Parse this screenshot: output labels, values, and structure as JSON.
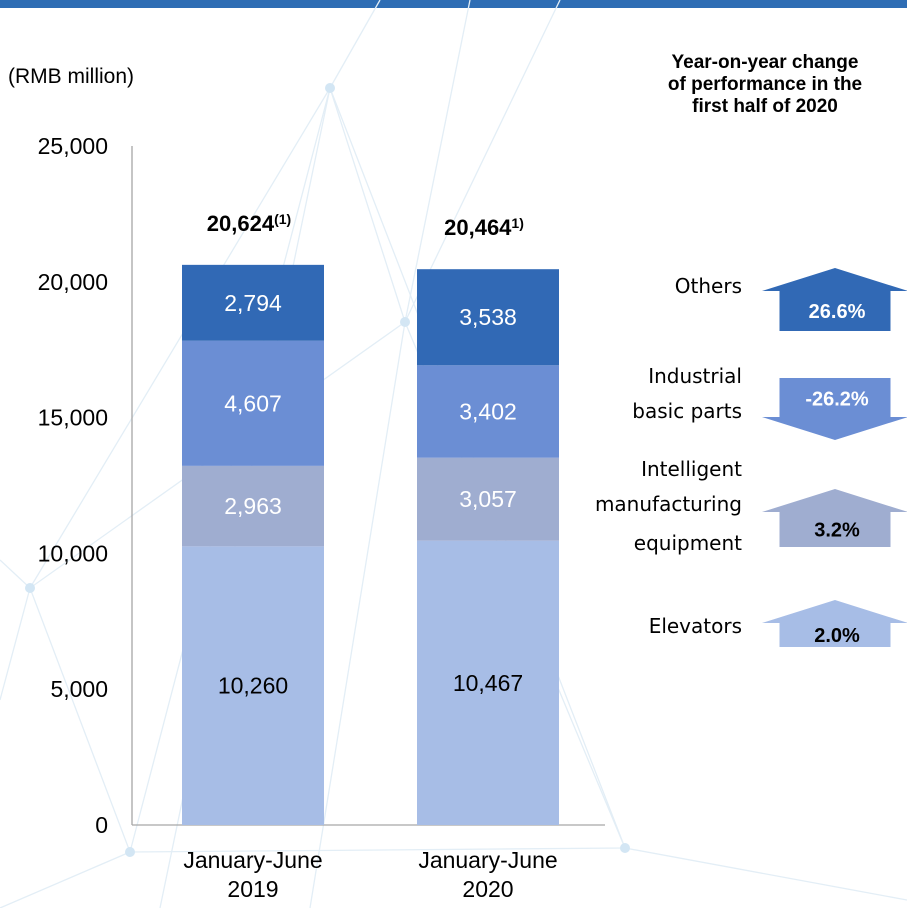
{
  "unit_label": "(RMB million)",
  "yoy_title": "Year-on-year change of performance in the first half of 2020",
  "colors": {
    "elevators": "#a7bde6",
    "intelligent_manufacturing_equipment": "#9fadd0",
    "industrial_basic_parts": "#6b8ed4",
    "others": "#3169b5",
    "axis": "#a6a6a6",
    "top_bar": "#2e6db4"
  },
  "chart_data": {
    "type": "bar",
    "stacked": true,
    "categories": [
      [
        "January-June",
        "2019"
      ],
      [
        "January-June",
        "2020"
      ]
    ],
    "totals": [
      "20,624",
      "20,464"
    ],
    "total_marks": [
      "(1)",
      "1)"
    ],
    "series": [
      {
        "key": "elevators",
        "name": "Elevators",
        "values": [
          10260,
          10467
        ],
        "labels": [
          "10,260",
          "10,467"
        ],
        "label_color": "#000000"
      },
      {
        "key": "intelligent_manufacturing_equipment",
        "name": "Intelligent manufacturing equipment",
        "values": [
          2963,
          3057
        ],
        "labels": [
          "2,963",
          "3,057"
        ],
        "label_color": "#ffffff"
      },
      {
        "key": "industrial_basic_parts",
        "name": "Industrial basic parts",
        "values": [
          4607,
          3402
        ],
        "labels": [
          "4,607",
          "3,402"
        ],
        "label_color": "#ffffff"
      },
      {
        "key": "others",
        "name": "Others",
        "values": [
          2794,
          3538
        ],
        "labels": [
          "2,794",
          "3,538"
        ],
        "label_color": "#ffffff"
      }
    ],
    "ylim": [
      0,
      25000
    ],
    "yticks": [
      0,
      5000,
      10000,
      15000,
      20000,
      25000
    ],
    "ytick_labels": [
      "0",
      "5,000",
      "10,000",
      "15,000",
      "20,000",
      "25,000"
    ],
    "grid": false
  },
  "yoy_changes": [
    {
      "key": "others",
      "label_lines": [
        "Others"
      ],
      "change": "26.6%",
      "direction": "up"
    },
    {
      "key": "industrial_basic_parts",
      "label_lines": [
        "Industrial",
        "basic parts"
      ],
      "change": "-26.2%",
      "direction": "down"
    },
    {
      "key": "intelligent_manufacturing_equipment",
      "label_lines": [
        "Intelligent",
        "manufacturing",
        "equipment"
      ],
      "change": "3.2%",
      "direction": "up"
    },
    {
      "key": "elevators",
      "label_lines": [
        "Elevators"
      ],
      "change": "2.0%",
      "direction": "up"
    }
  ]
}
